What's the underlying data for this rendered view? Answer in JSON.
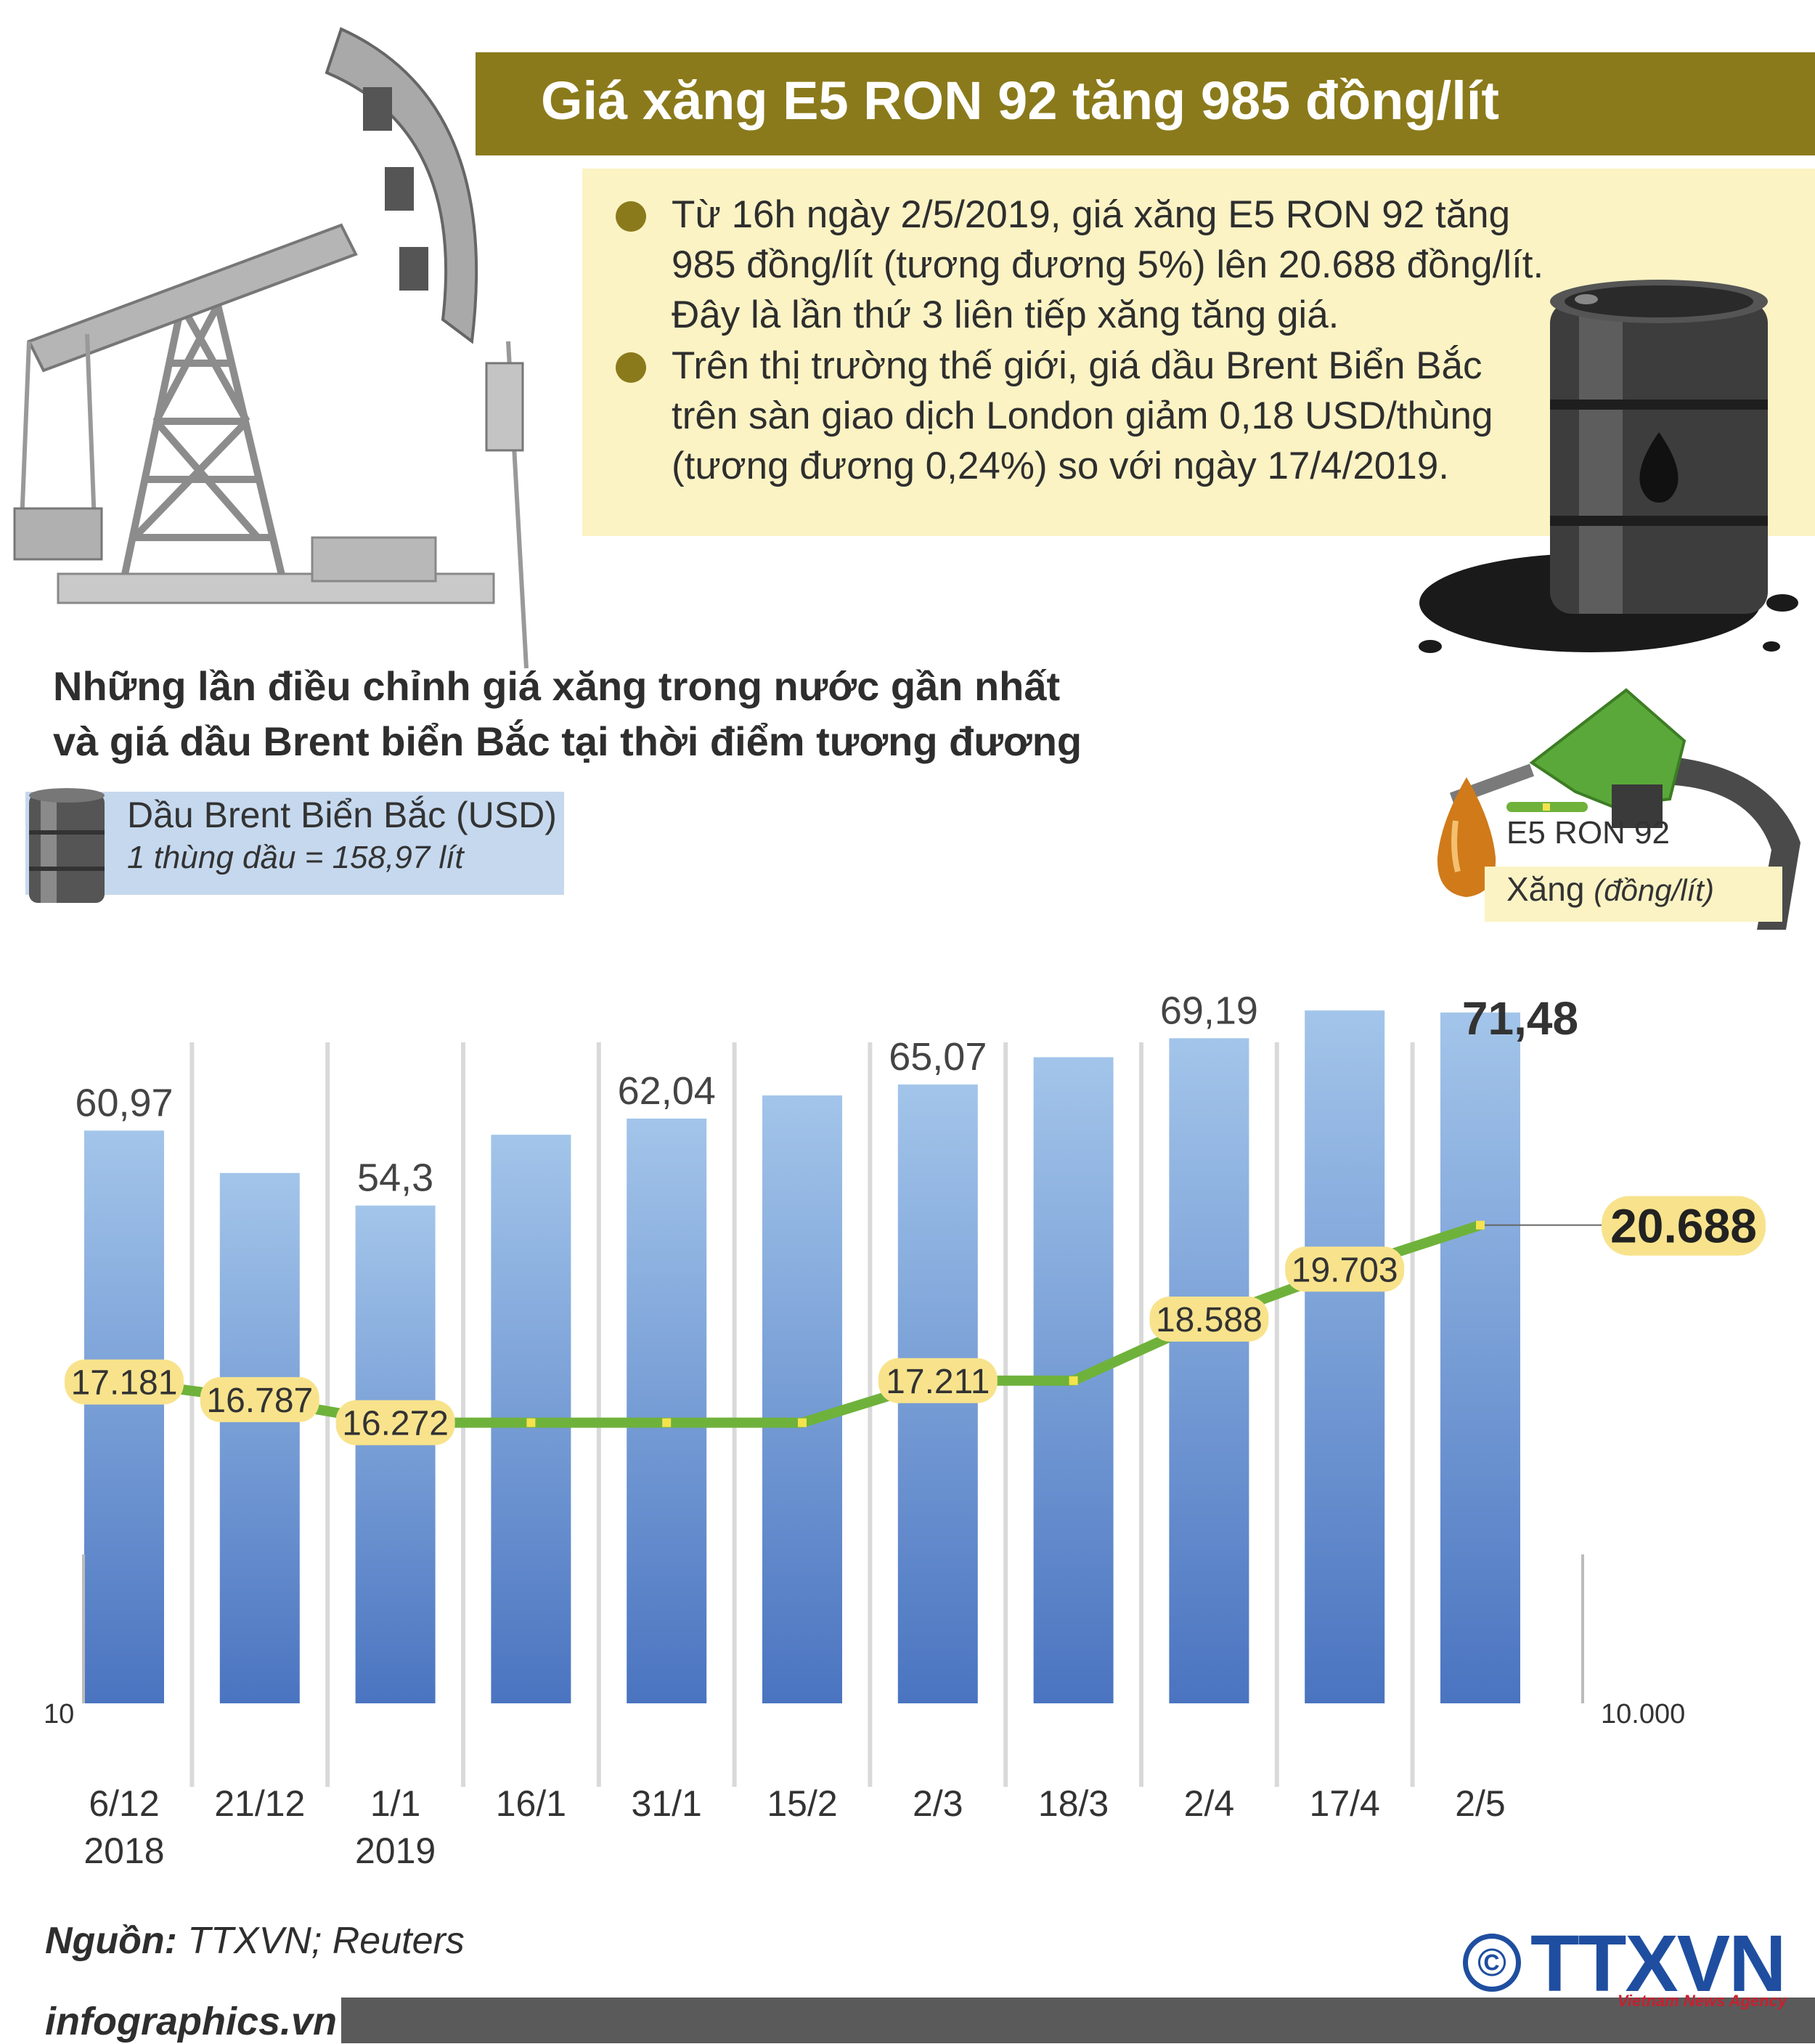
{
  "title": "Giá xăng E5 RON 92 tăng 985 đồng/lít",
  "info": {
    "bullets": [
      {
        "lines": [
          "Từ 16h ngày 2/5/2019, giá xăng E5 RON 92 tăng",
          "985 đồng/lít (tương đương 5%) lên 20.688 đồng/lít.",
          "Đây là lần thứ 3 liên tiếp xăng tăng giá."
        ]
      },
      {
        "lines": [
          "Trên thị trường thế giới, giá dầu Brent Biển Bắc",
          "trên sàn giao dịch London giảm 0,18 USD/thùng",
          "(tương đương 0,24%) so với ngày 17/4/2019."
        ]
      }
    ]
  },
  "subtitle": {
    "line1": "Những lần điều chỉnh giá xăng trong nước gần nhất",
    "line2": "và giá dầu Brent biển Bắc tại thời điểm tương đương"
  },
  "legend": {
    "oil": {
      "label": "Dầu Brent Biển Bắc (USD)",
      "note": "1 thùng dầu = 158,97 lít"
    },
    "gas": {
      "series": "E5 RON 92",
      "label": "Xăng",
      "unit": "(đồng/lít)"
    }
  },
  "colors": {
    "title_bar": "#8a7a1b",
    "info_bg": "#fbf3c4",
    "bar_top": "#a3c5ea",
    "bar_bottom": "#4a74c0",
    "line": "#6fb23b",
    "value_badge": "#f8e38c",
    "separator": "#d9d9d9"
  },
  "chart_data": {
    "type": "bar+line",
    "categories": [
      "6/12",
      "21/12",
      "1/1",
      "16/1",
      "31/1",
      "15/2",
      "2/3",
      "18/3",
      "2/4",
      "17/4",
      "2/5"
    ],
    "category_years": [
      "2018",
      "",
      "2019",
      "",
      "",
      "",
      "",
      "",
      "",
      "",
      ""
    ],
    "left_axis_label": "10",
    "right_axis_label": "10.000",
    "series": [
      {
        "name": "Dầu Brent Biển Bắc (USD)",
        "type": "bar",
        "values": [
          60.97,
          57.2,
          54.3,
          60.6,
          62.04,
          64.1,
          65.07,
          67.5,
          69.19,
          71.66,
          71.48
        ],
        "value_labels": [
          "60,97",
          "",
          "54,3",
          "",
          "62,04",
          "",
          "65,07",
          "",
          "69,19",
          "",
          "71,48"
        ],
        "axis_min": 10
      },
      {
        "name": "E5 RON 92",
        "type": "line",
        "values": [
          17181,
          16787,
          16272,
          16272,
          16272,
          16272,
          17211,
          17211,
          18588,
          19703,
          20688
        ],
        "value_labels": [
          "17.181",
          "16.787",
          "16.272",
          "",
          "",
          "",
          "17.211",
          "",
          "18.588",
          "19.703",
          "20.688"
        ],
        "axis_min": 10000
      }
    ]
  },
  "source": {
    "label": "Nguồn:",
    "value": "TTXVN; Reuters"
  },
  "footer": {
    "site": "infographics.vn",
    "copyright": "©",
    "logo": "TTXVN",
    "logo_sub": "Vietnam News Agency"
  }
}
